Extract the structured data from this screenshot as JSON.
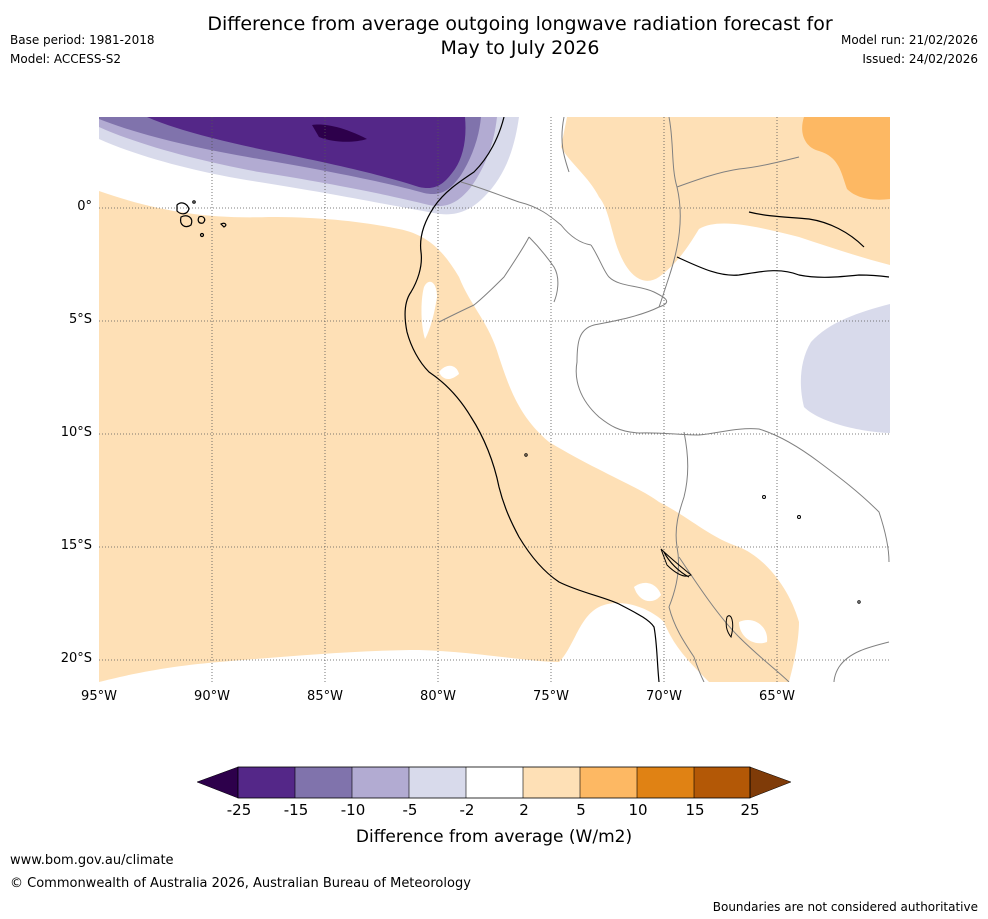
{
  "header": {
    "title_line1": "Difference from average outgoing longwave radiation forecast for",
    "title_line2": "May to July 2026",
    "base_period": "Base period: 1981-2018",
    "model": "Model: ACCESS-S2",
    "model_run": "Model run: 21/02/2026",
    "issued": "Issued: 24/02/2026"
  },
  "map": {
    "lat_labels": [
      "0°",
      "5°S",
      "10°S",
      "15°S",
      "20°S"
    ],
    "lon_labels": [
      "95°W",
      "90°W",
      "85°W",
      "80°W",
      "75°W",
      "70°W",
      "65°W"
    ],
    "lat_range": [
      -21,
      4
    ],
    "lon_range": [
      -95,
      -60
    ]
  },
  "colorbar": {
    "ticks": [
      "-25",
      "-15",
      "-10",
      "-5",
      "-2",
      "2",
      "5",
      "10",
      "15",
      "25"
    ],
    "colors": [
      "#2d004b",
      "#542788",
      "#8073ac",
      "#b2abd2",
      "#d8daeb",
      "#ffffff",
      "#fee0b6",
      "#fdb863",
      "#e08214",
      "#b35806",
      "#7f3b08"
    ],
    "label": "Difference from average (W/m2)"
  },
  "footer": {
    "url": "www.bom.gov.au/climate",
    "copyright": "© Commonwealth of Australia 2026, Australian Bureau of Meteorology",
    "disclaimer": "Boundaries are not considered authoritative"
  }
}
